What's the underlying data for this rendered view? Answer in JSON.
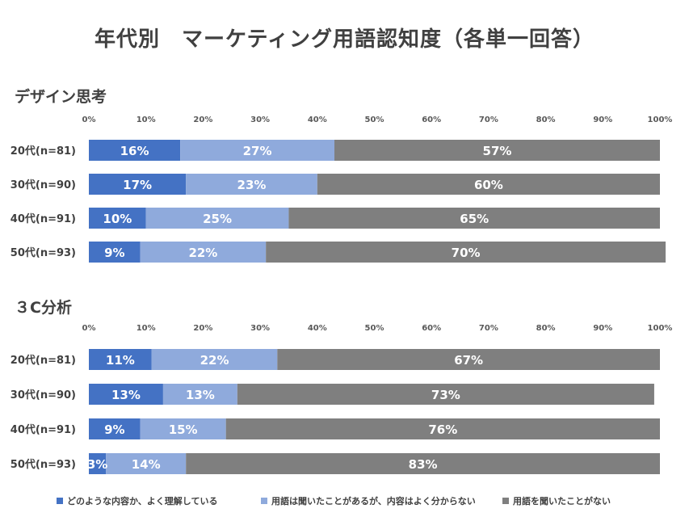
{
  "title": "年代別　マーケティング用語認知度（各単一回答）",
  "colors": {
    "aware": "#4472C4",
    "heard": "#8FAADC",
    "notheard": "#7F7F7F"
  },
  "legend": [
    {
      "label": "どのような内容か、よく理解している",
      "color": "#4472C4"
    },
    {
      "label": "用語は聞いたことがあるが、内容はよく分からない",
      "color": "#8FAADC"
    },
    {
      "label": "用語を聞いたことがない",
      "color": "#7F7F7F"
    }
  ],
  "chart_data": [
    {
      "type": "bar",
      "orientation": "horizontal",
      "stacked": "percent",
      "title": "デザイン思考",
      "categories": [
        "20代(n=81)",
        "30代(n=90)",
        "40代(n=91)",
        "50代(n=93)"
      ],
      "x_ticks": [
        "0%",
        "10%",
        "20%",
        "30%",
        "40%",
        "50%",
        "60%",
        "70%",
        "80%",
        "90%",
        "100%"
      ],
      "xlim": [
        0,
        100
      ],
      "series": [
        {
          "name": "どのような内容か、よく理解している",
          "values": [
            16,
            17,
            10,
            9
          ]
        },
        {
          "name": "用語は聞いたことがあるが、内容はよく分からない",
          "values": [
            27,
            23,
            25,
            22
          ]
        },
        {
          "name": "用語を聞いたことがない",
          "values": [
            57,
            60,
            65,
            70
          ]
        }
      ],
      "data_labels": [
        [
          "16%",
          "17%",
          "10%",
          "9%"
        ],
        [
          "27%",
          "23%",
          "25%",
          "22%"
        ],
        [
          "57%",
          "60%",
          "65%",
          "70%"
        ]
      ]
    },
    {
      "type": "bar",
      "orientation": "horizontal",
      "stacked": "percent",
      "title": "３C分析",
      "categories": [
        "20代(n=81)",
        "30代(n=90)",
        "40代(n=91)",
        "50代(n=93)"
      ],
      "x_ticks": [
        "0%",
        "10%",
        "20%",
        "30%",
        "40%",
        "50%",
        "60%",
        "70%",
        "80%",
        "90%",
        "100%"
      ],
      "xlim": [
        0,
        100
      ],
      "series": [
        {
          "name": "どのような内容か、よく理解している",
          "values": [
            11,
            13,
            9,
            3
          ]
        },
        {
          "name": "用語は聞いたことがあるが、内容はよく分からない",
          "values": [
            22,
            13,
            15,
            14
          ]
        },
        {
          "name": "用語を聞いたことがない",
          "values": [
            67,
            73,
            76,
            83
          ]
        }
      ],
      "data_labels": [
        [
          "11%",
          "13%",
          "9%",
          "3%"
        ],
        [
          "22%",
          "13%",
          "15%",
          "14%"
        ],
        [
          "67%",
          "73%",
          "76%",
          "83%"
        ]
      ]
    }
  ]
}
